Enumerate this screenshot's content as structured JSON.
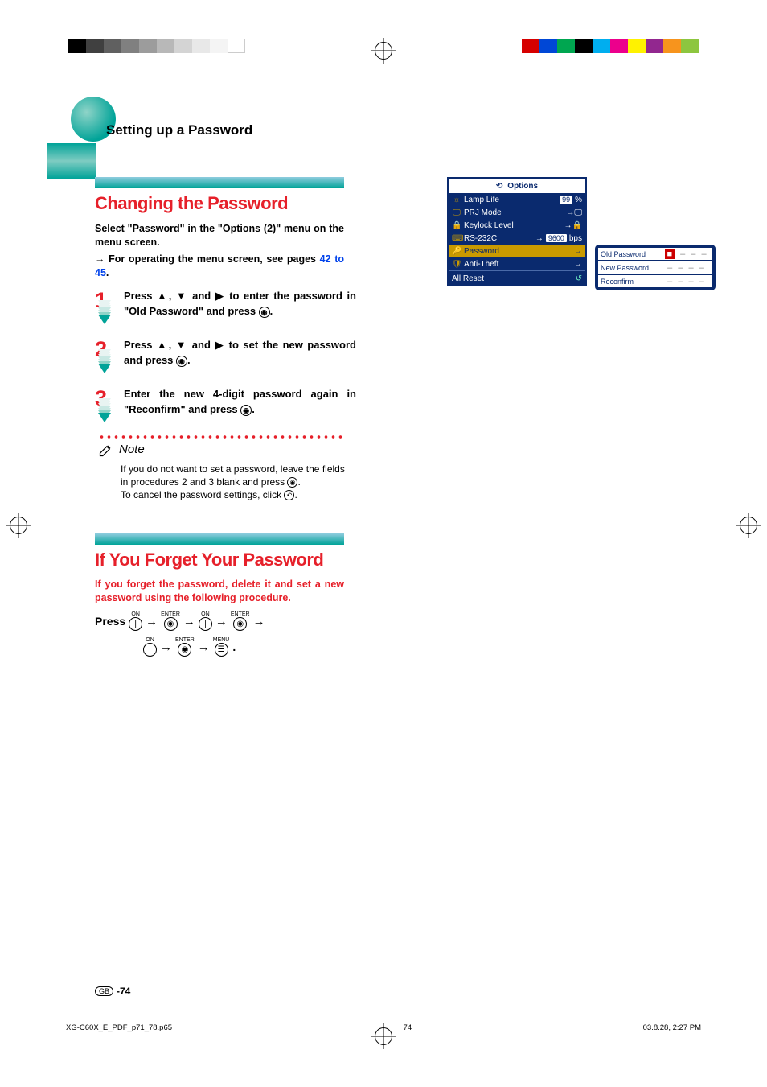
{
  "colors": {
    "accent_red": "#e6202a",
    "teal": "#00a398",
    "link_blue": "#0042eb",
    "osd_bg": "#0a2a6e",
    "osd_highlight": "#c99a00"
  },
  "colorbar_left": [
    "#000000",
    "#404040",
    "#606060",
    "#808080",
    "#9c9c9c",
    "#b8b8b8",
    "#d4d4d4",
    "#e8e8e8",
    "#f4f4f4",
    "#ffffff"
  ],
  "colorbar_right": [
    "#d60000",
    "#0047d6",
    "#00a650",
    "#000000",
    "#00aeef",
    "#ec008c",
    "#fff200",
    "#92278f",
    "#f7941d",
    "#8dc63f"
  ],
  "header": {
    "page_title": "Setting up a Password"
  },
  "section1": {
    "title": "Changing the Password",
    "intro_line1": "Select \"Password\" in the \"Options (2)\" menu on the menu screen.",
    "intro_line2_prefix": "→ For operating the menu screen, see pages ",
    "intro_line2_link": "42 to 45",
    "intro_line2_suffix": ".",
    "steps": [
      {
        "num": "1",
        "text_before": "Press ",
        "symbols": "▲, ▼ and ▶",
        "text_mid": " to enter the password in \"Old Password\" and press ",
        "text_after": "."
      },
      {
        "num": "2",
        "text_before": "Press ",
        "symbols": "▲, ▼ and ▶",
        "text_mid": " to set the new password and press ",
        "text_after": "."
      },
      {
        "num": "3",
        "text_before": "Enter the new 4-digit password again in \"Reconfirm\" and press ",
        "symbols": "",
        "text_mid": "",
        "text_after": "."
      }
    ],
    "note_label": "Note",
    "note_line1": "If you do not want to set a password, leave the fields in procedures 2 and 3 blank and press ",
    "note_line1_end": ".",
    "note_line2": "To cancel the password settings, click ",
    "note_line2_end": "."
  },
  "section2": {
    "title": "If You Forget Your Password",
    "intro": "If you forget the password, delete it and set a new password using the following procedure.",
    "press_label": "Press",
    "sequence": [
      {
        "label": "ON",
        "glyph": "|"
      },
      {
        "label": "ENTER",
        "glyph": "◉"
      },
      {
        "label": "ON",
        "glyph": "|"
      },
      {
        "label": "ENTER",
        "glyph": "◉"
      },
      {
        "label": "ON",
        "glyph": "|"
      },
      {
        "label": "ENTER",
        "glyph": "◉"
      },
      {
        "label": "MENU",
        "glyph": "☰"
      }
    ],
    "seq_end": "."
  },
  "osd": {
    "title": "Options",
    "rows": [
      {
        "icon": "☼",
        "label": "Lamp Life",
        "value": "99",
        "unit": "%",
        "color": "#c99a00"
      },
      {
        "icon": "🖵",
        "label": "PRJ Mode",
        "value": "",
        "suffix_icon": "→🖵",
        "color": "#c99a00"
      },
      {
        "icon": "🔒",
        "label": "Keylock Level",
        "value": "",
        "suffix_icon": "→🔒",
        "color": "#c99a00"
      },
      {
        "icon": "⌨",
        "label": "RS-232C",
        "value": "9600",
        "unit": "bps",
        "arrow": "→",
        "color": "#c99a00"
      },
      {
        "icon": "🔑",
        "label": "Password",
        "value": "",
        "suffix_icon": "→",
        "selected": true,
        "color": "#c99a00"
      },
      {
        "icon": "🛡",
        "label": "Anti-Theft",
        "value": "",
        "suffix_icon": "→",
        "color": "#c99a00"
      }
    ],
    "all_reset": {
      "label": "All Reset",
      "icon": "↺"
    }
  },
  "osd_pw": {
    "rows": [
      {
        "label": "Old Password",
        "field": "■ – – –",
        "active": true
      },
      {
        "label": "New Password",
        "field": "– – – –"
      },
      {
        "label": "Reconfirm",
        "field": "– – – –"
      }
    ]
  },
  "footer": {
    "gb": "GB",
    "page": "-74"
  },
  "print_footer": {
    "file": "XG-C60X_E_PDF_p71_78.p65",
    "page": "74",
    "date": "03.8.28, 2:27 PM"
  }
}
